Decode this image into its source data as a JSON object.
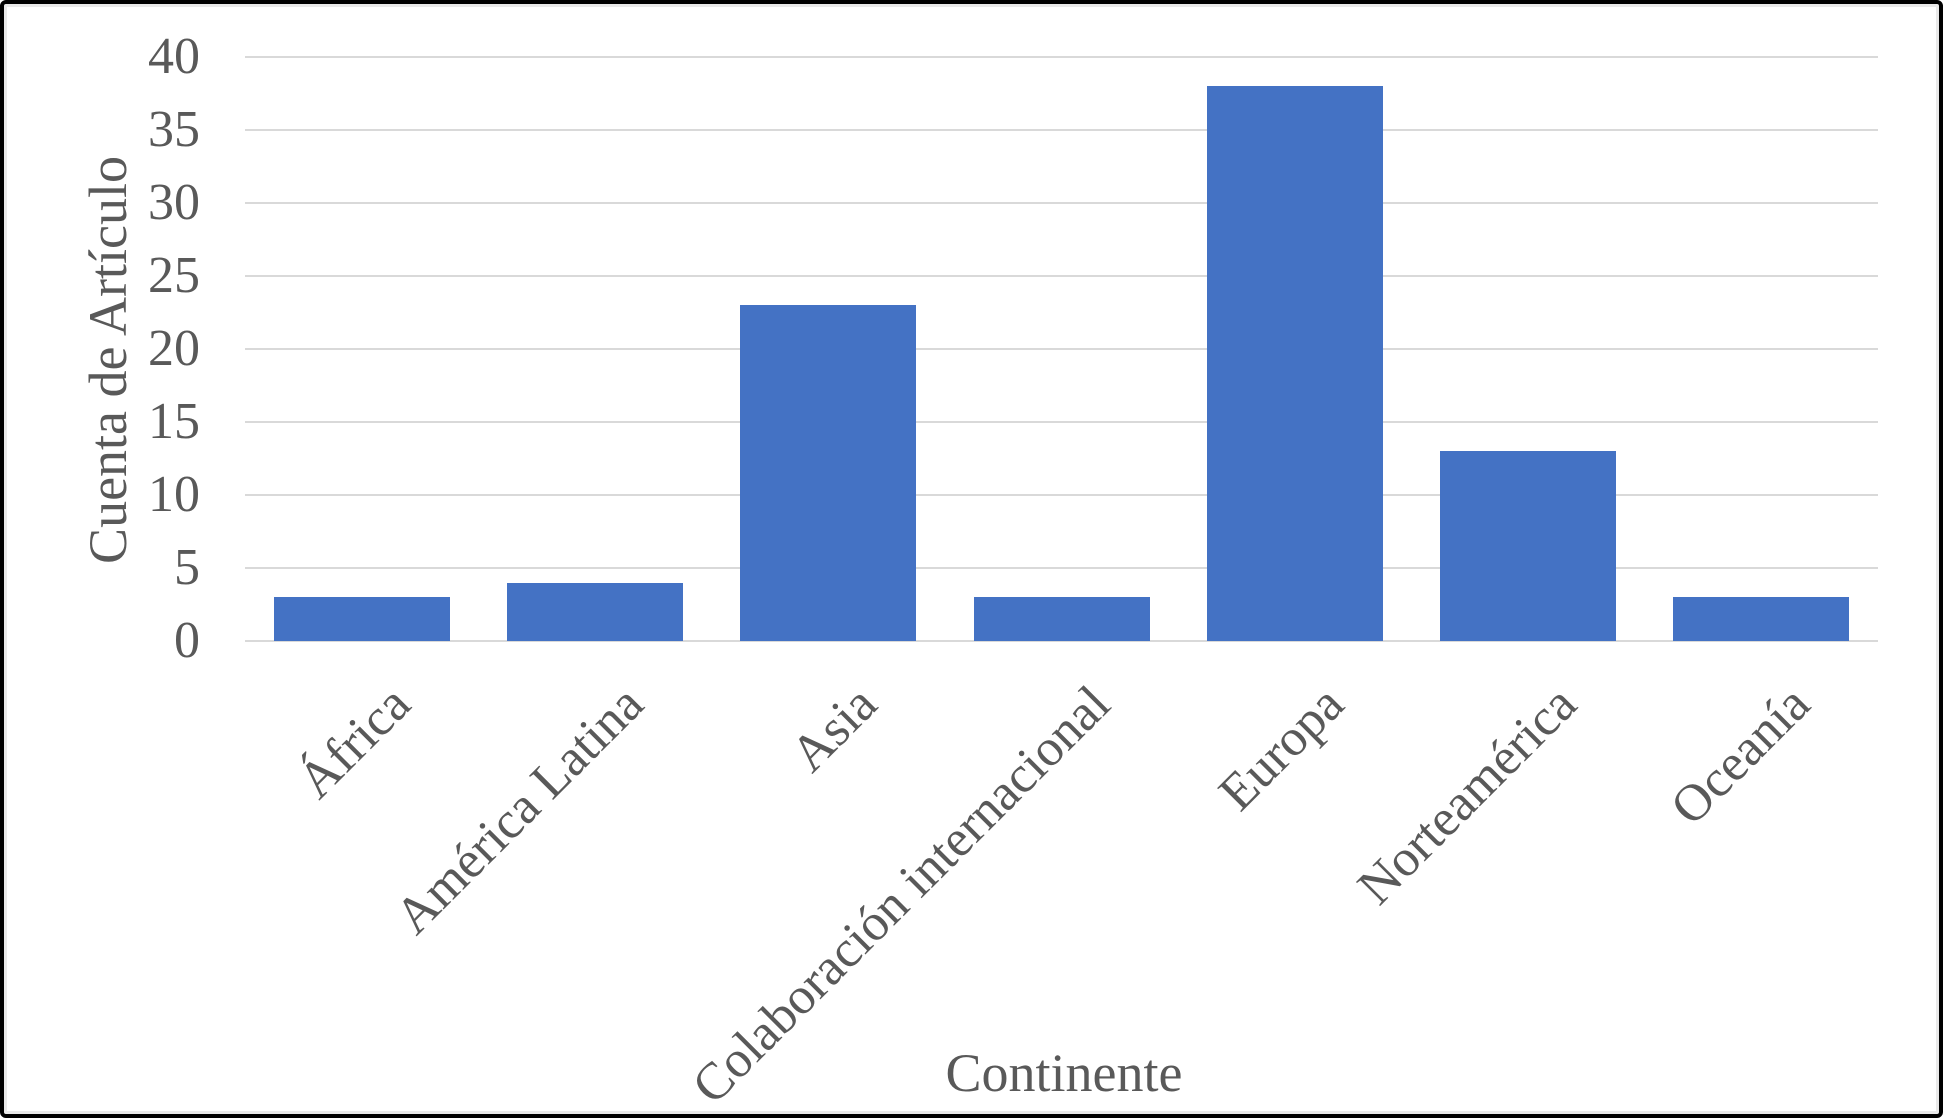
{
  "chart_data": {
    "type": "bar",
    "categories": [
      "África",
      "América Latina",
      "Asia",
      "Colaboración internacional",
      "Europa",
      "Norteamérica",
      "Oceanía"
    ],
    "values": [
      3,
      4,
      23,
      3,
      38,
      13,
      3
    ],
    "xlabel": "Continente",
    "ylabel": "Cuenta de Artículo",
    "ylim": [
      0,
      40
    ],
    "ytick_step": 5,
    "yticks": [
      0,
      5,
      10,
      15,
      20,
      25,
      30,
      35,
      40
    ],
    "grid": true,
    "legend": "none",
    "bar_color": "#4472C4",
    "gridline_color": "#D9D9D9",
    "axis_line_color": "#D9D9D9",
    "text_color": "#595959",
    "background_color": "#FFFFFF",
    "border_color": "#000000"
  }
}
